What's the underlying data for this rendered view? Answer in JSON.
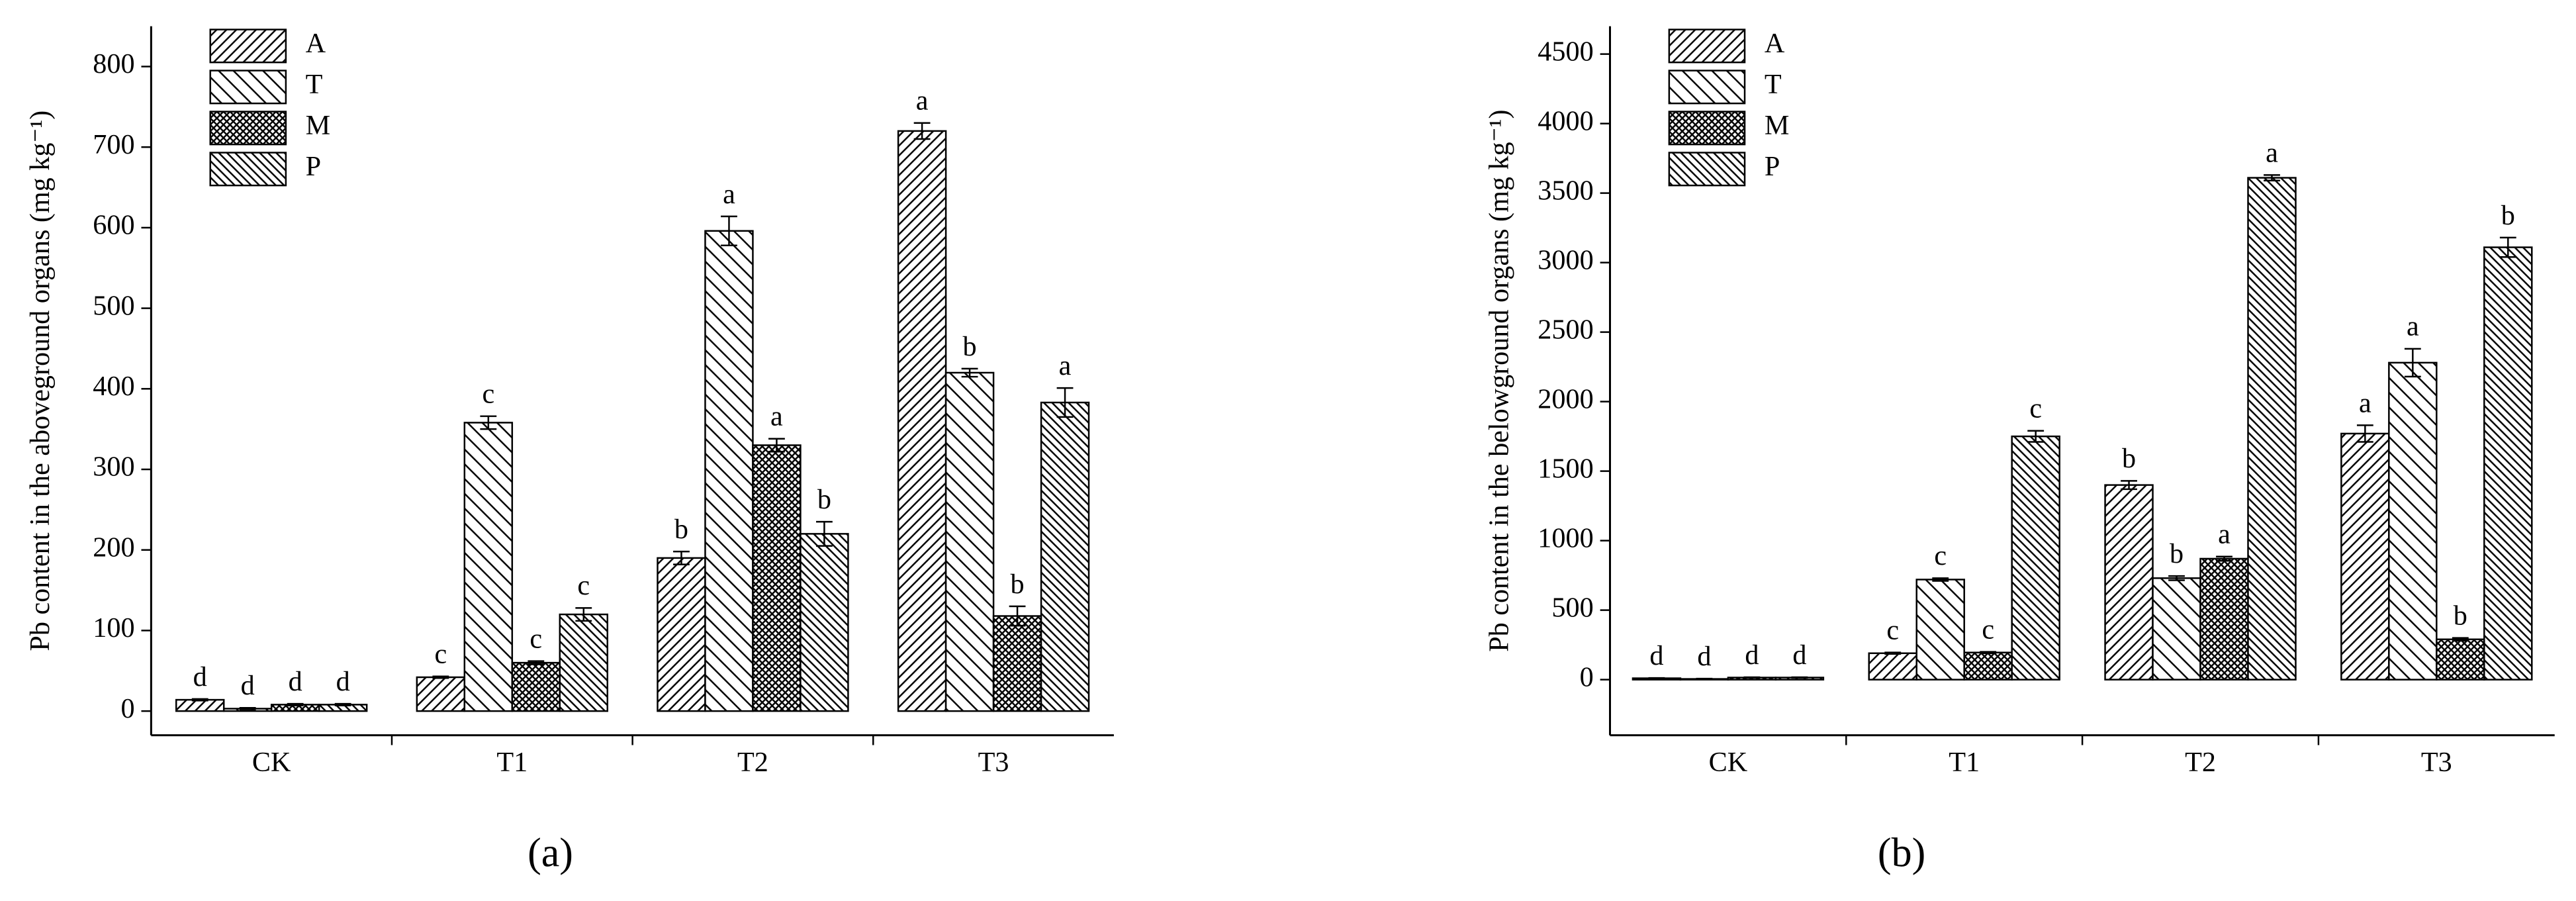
{
  "chart_data": [
    {
      "type": "bar",
      "panel_label": "(a)",
      "ylabel": "Pb content in the aboveground organs (mg kg⁻¹)",
      "categories": [
        "CK",
        "T1",
        "T2",
        "T3"
      ],
      "series": [
        {
          "name": "A",
          "color": "#000000",
          "values": [
            14,
            42,
            190,
            720
          ],
          "errors": [
            1,
            1,
            8,
            10
          ],
          "labels": [
            "d",
            "c",
            "b",
            "a"
          ]
        },
        {
          "name": "T",
          "color": "#000000",
          "values": [
            3,
            358,
            596,
            420
          ],
          "errors": [
            1,
            8,
            18,
            5
          ],
          "labels": [
            "d",
            "c",
            "a",
            "b"
          ]
        },
        {
          "name": "M",
          "color": "#000000",
          "values": [
            8,
            60,
            330,
            118
          ],
          "errors": [
            1,
            2,
            8,
            12
          ],
          "labels": [
            "d",
            "c",
            "a",
            "b"
          ]
        },
        {
          "name": "P",
          "color": "#000000",
          "values": [
            8,
            120,
            220,
            383
          ],
          "errors": [
            1,
            8,
            15,
            18
          ],
          "labels": [
            "d",
            "c",
            "b",
            "a"
          ]
        }
      ],
      "ylim": [
        -30,
        850
      ],
      "yticks": [
        0,
        100,
        200,
        300,
        400,
        500,
        600,
        700,
        800
      ],
      "legend": "upper left"
    },
    {
      "type": "bar",
      "panel_label": "(b)",
      "ylabel": "Pb content in the belowground organs (mg kg⁻¹)",
      "categories": [
        "CK",
        "T1",
        "T2",
        "T3"
      ],
      "series": [
        {
          "name": "A",
          "color": "#000000",
          "values": [
            10,
            190,
            1400,
            1770
          ],
          "errors": [
            2,
            5,
            30,
            60
          ],
          "labels": [
            "d",
            "c",
            "b",
            "a"
          ]
        },
        {
          "name": "T",
          "color": "#000000",
          "values": [
            5,
            720,
            730,
            2280
          ],
          "errors": [
            2,
            10,
            15,
            100
          ],
          "labels": [
            "d",
            "c",
            "b",
            "a"
          ]
        },
        {
          "name": "M",
          "color": "#000000",
          "values": [
            15,
            195,
            870,
            290
          ],
          "errors": [
            2,
            5,
            15,
            10
          ],
          "labels": [
            "d",
            "c",
            "a",
            "b"
          ]
        },
        {
          "name": "P",
          "color": "#000000",
          "values": [
            15,
            1750,
            3610,
            3110
          ],
          "errors": [
            2,
            40,
            20,
            70
          ],
          "labels": [
            "d",
            "c",
            "a",
            "b"
          ]
        }
      ],
      "ylim": [
        -400,
        4700
      ],
      "yticks": [
        0,
        500,
        1000,
        1500,
        2000,
        2500,
        3000,
        3500,
        4000,
        4500
      ],
      "legend": "upper left"
    }
  ]
}
